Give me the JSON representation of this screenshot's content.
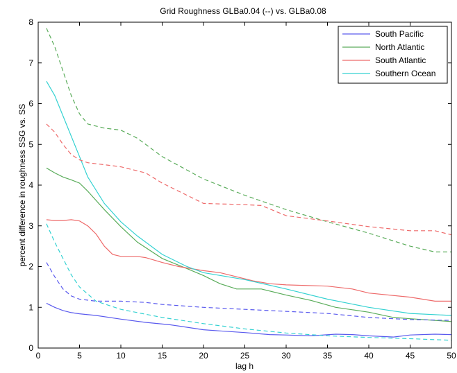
{
  "chart_data": {
    "type": "line",
    "title": "Grid Roughness GLBa0.04 (--) vs. GLBa0.08",
    "xlabel": "lag h",
    "ylabel": "percent difference in roughness SSG vs. SS",
    "xlim": [
      0,
      50
    ],
    "ylim": [
      0,
      8
    ],
    "x_ticks": [
      0,
      5,
      10,
      15,
      20,
      25,
      30,
      35,
      40,
      45,
      50
    ],
    "y_ticks": [
      0,
      1,
      2,
      3,
      4,
      5,
      6,
      7,
      8
    ],
    "grid": false,
    "legend_position": "top-right",
    "series": [
      {
        "name": "South Pacific",
        "color": "#5a5aee",
        "style": "solid",
        "x": [
          1,
          2,
          3,
          4,
          5,
          7,
          10,
          13,
          16,
          20,
          22,
          25,
          28,
          30,
          33,
          36,
          38,
          40,
          43,
          45,
          48,
          50
        ],
        "y": [
          1.1,
          1.0,
          0.92,
          0.87,
          0.84,
          0.8,
          0.71,
          0.63,
          0.57,
          0.45,
          0.42,
          0.38,
          0.33,
          0.32,
          0.3,
          0.34,
          0.33,
          0.3,
          0.27,
          0.32,
          0.34,
          0.33
        ]
      },
      {
        "name": "North Atlantic",
        "color": "#5aac5a",
        "style": "solid",
        "x": [
          1,
          2,
          3,
          4,
          5,
          6,
          8,
          10,
          12,
          15,
          18,
          20,
          22,
          24,
          25,
          27,
          30,
          33,
          36,
          40,
          43,
          45,
          48,
          50
        ],
        "y": [
          4.42,
          4.3,
          4.2,
          4.13,
          4.05,
          3.85,
          3.4,
          2.98,
          2.6,
          2.2,
          1.95,
          1.78,
          1.58,
          1.45,
          1.45,
          1.45,
          1.3,
          1.17,
          1.0,
          0.88,
          0.75,
          0.72,
          0.68,
          0.65
        ]
      },
      {
        "name": "South Atlantic",
        "color": "#ee6a6a",
        "style": "solid",
        "x": [
          1,
          2,
          3,
          4,
          5,
          6,
          7,
          8,
          9,
          10,
          12,
          13,
          15,
          17,
          20,
          22,
          24,
          26,
          28,
          30,
          35,
          38,
          40,
          45,
          48,
          50
        ],
        "y": [
          3.15,
          3.13,
          3.13,
          3.15,
          3.12,
          3.0,
          2.8,
          2.5,
          2.3,
          2.25,
          2.25,
          2.22,
          2.1,
          2.0,
          1.9,
          1.85,
          1.75,
          1.65,
          1.58,
          1.55,
          1.52,
          1.45,
          1.35,
          1.25,
          1.15,
          1.15
        ]
      },
      {
        "name": "Southern Ocean",
        "color": "#35d2d2",
        "style": "solid",
        "x": [
          1,
          2,
          3,
          4,
          5,
          6,
          8,
          10,
          12,
          15,
          18,
          20,
          25,
          30,
          35,
          40,
          45,
          50
        ],
        "y": [
          6.55,
          6.2,
          5.7,
          5.2,
          4.7,
          4.2,
          3.55,
          3.1,
          2.75,
          2.3,
          2.0,
          1.85,
          1.68,
          1.45,
          1.2,
          1.0,
          0.85,
          0.8
        ]
      },
      {
        "name": "South Pacific (GLBa0.04)",
        "color": "#5a5aee",
        "style": "dashed",
        "x": [
          1,
          2,
          3,
          4,
          5,
          7,
          10,
          13,
          15,
          20,
          25,
          30,
          35,
          40,
          45,
          50
        ],
        "y": [
          2.1,
          1.75,
          1.45,
          1.28,
          1.2,
          1.15,
          1.15,
          1.12,
          1.07,
          1.0,
          0.95,
          0.9,
          0.85,
          0.75,
          0.7,
          0.68
        ]
      },
      {
        "name": "North Atlantic (GLBa0.04)",
        "color": "#5aac5a",
        "style": "dashed",
        "x": [
          1,
          2,
          3,
          4,
          5,
          6,
          8,
          10,
          12,
          15,
          20,
          25,
          30,
          35,
          40,
          45,
          48,
          50
        ],
        "y": [
          7.85,
          7.4,
          6.8,
          6.2,
          5.75,
          5.5,
          5.4,
          5.35,
          5.15,
          4.7,
          4.15,
          3.75,
          3.4,
          3.1,
          2.82,
          2.5,
          2.36,
          2.36
        ]
      },
      {
        "name": "South Atlantic (GLBa0.04)",
        "color": "#ee6a6a",
        "style": "dashed",
        "x": [
          1,
          2,
          3,
          4,
          5,
          6,
          8,
          10,
          13,
          15,
          17,
          20,
          25,
          27,
          30,
          35,
          40,
          45,
          48,
          50
        ],
        "y": [
          5.5,
          5.3,
          5.0,
          4.75,
          4.62,
          4.55,
          4.5,
          4.45,
          4.3,
          4.05,
          3.85,
          3.55,
          3.52,
          3.5,
          3.25,
          3.12,
          2.98,
          2.88,
          2.88,
          2.78
        ]
      },
      {
        "name": "Southern Ocean (GLBa0.04)",
        "color": "#35d2d2",
        "style": "dashed",
        "x": [
          1,
          2,
          3,
          4,
          5,
          7,
          10,
          15,
          20,
          25,
          30,
          35,
          40,
          45,
          50
        ],
        "y": [
          3.05,
          2.6,
          2.2,
          1.8,
          1.5,
          1.15,
          0.95,
          0.75,
          0.6,
          0.47,
          0.37,
          0.3,
          0.26,
          0.23,
          0.19
        ]
      }
    ],
    "legend": [
      "South Pacific",
      "North Atlantic",
      "South Atlantic",
      "Southern Ocean"
    ]
  }
}
